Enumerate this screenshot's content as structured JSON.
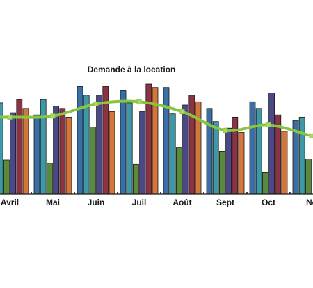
{
  "chart_data": {
    "type": "bar",
    "title": "Demande à la location",
    "categories": [
      "Avril",
      "Mai",
      "Juin",
      "Juil",
      "Août",
      "Sept",
      "Oct",
      "No"
    ],
    "ylim": [
      0,
      100
    ],
    "grid": false,
    "legend": "none",
    "series": [
      {
        "color": "#3a6ea5",
        "values": [
          80,
          72,
          98,
          94,
          97,
          78,
          84,
          67
        ]
      },
      {
        "color": "#3e98a8",
        "values": [
          83,
          86,
          90,
          83,
          73,
          66,
          78,
          70
        ]
      },
      {
        "color": "#5a8a3c",
        "values": [
          31,
          28,
          61,
          27,
          42,
          39,
          20,
          32
        ]
      },
      {
        "color": "#4b4889",
        "values": [
          74,
          80,
          90,
          75,
          81,
          60,
          92,
          0
        ]
      },
      {
        "color": "#8b3243",
        "values": [
          86,
          78,
          98,
          100,
          90,
          70,
          72,
          0
        ]
      },
      {
        "color": "#d2763a",
        "values": [
          78,
          70,
          75,
          97,
          84,
          56,
          57,
          0
        ]
      }
    ],
    "line": {
      "color": "#88c540",
      "values": [
        70,
        71,
        82,
        84,
        75,
        58,
        63,
        53
      ]
    }
  }
}
